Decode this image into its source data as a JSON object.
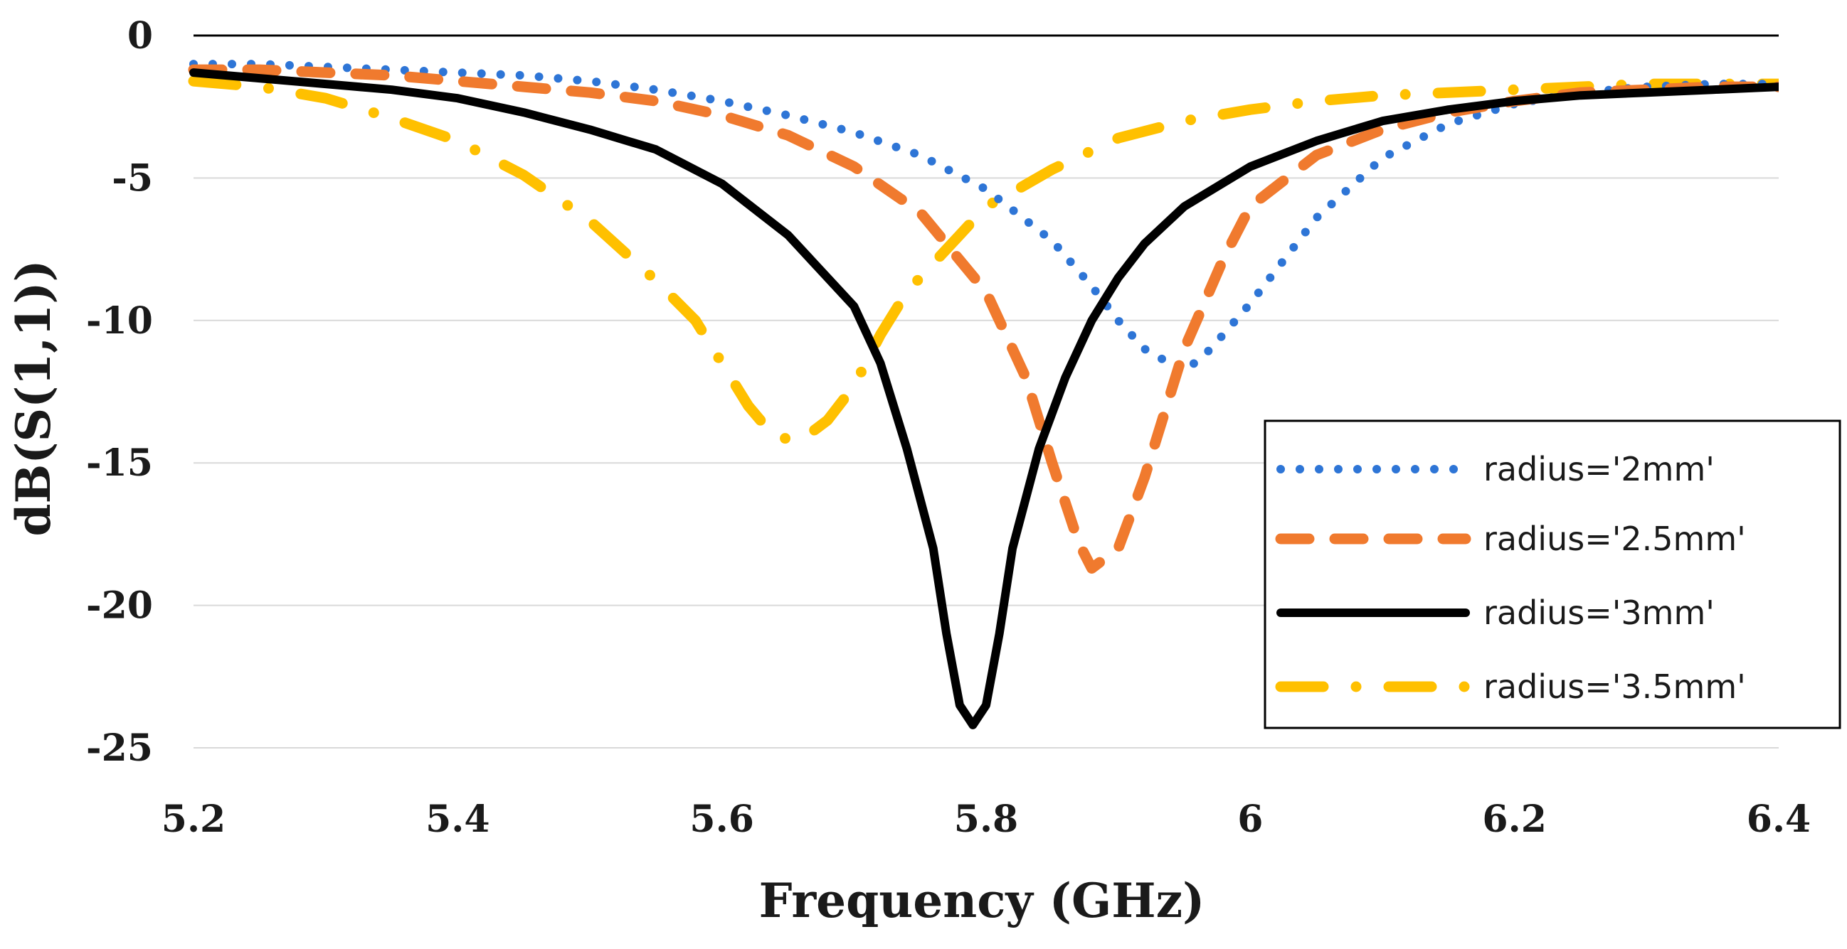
{
  "chart_data": {
    "type": "line",
    "title": "",
    "xlabel": "Frequency (GHz)",
    "ylabel": "dB(S(1,1))",
    "xlim": [
      5.2,
      6.4
    ],
    "ylim": [
      -25,
      0
    ],
    "xticks": [
      5.2,
      5.4,
      5.6,
      5.8,
      6,
      6.2,
      6.4
    ],
    "xtick_labels": [
      "5.2",
      "5.4",
      "5.6",
      "5.8",
      "6",
      "6.2",
      "6.4"
    ],
    "yticks": [
      0,
      -5,
      -10,
      -15,
      -20,
      -25
    ],
    "ytick_labels": [
      "0",
      "-5",
      "-10",
      "-15",
      "-20",
      "-25"
    ],
    "grid": "horizontal",
    "legend_position": "right",
    "series": [
      {
        "name": "radius='2mm'",
        "color": "#2E75D6",
        "style": "dotted",
        "x": [
          5.2,
          5.25,
          5.3,
          5.35,
          5.4,
          5.45,
          5.5,
          5.55,
          5.6,
          5.65,
          5.7,
          5.75,
          5.8,
          5.85,
          5.88,
          5.9,
          5.92,
          5.95,
          5.97,
          6.0,
          6.05,
          6.1,
          6.15,
          6.2,
          6.25,
          6.3,
          6.35,
          6.4
        ],
        "y": [
          -1.0,
          -1.0,
          -1.1,
          -1.2,
          -1.3,
          -1.4,
          -1.6,
          -1.9,
          -2.3,
          -2.8,
          -3.4,
          -4.2,
          -5.4,
          -7.2,
          -8.8,
          -10.0,
          -11.0,
          -11.8,
          -11.0,
          -9.4,
          -6.4,
          -4.3,
          -3.1,
          -2.4,
          -2.0,
          -1.8,
          -1.7,
          -1.7
        ]
      },
      {
        "name": "radius='2.5mm'",
        "color": "#F07A2E",
        "style": "dashed",
        "x": [
          5.2,
          5.25,
          5.3,
          5.35,
          5.4,
          5.45,
          5.5,
          5.55,
          5.6,
          5.65,
          5.7,
          5.75,
          5.8,
          5.83,
          5.85,
          5.87,
          5.88,
          5.9,
          5.92,
          5.95,
          5.98,
          6.0,
          6.05,
          6.1,
          6.15,
          6.2,
          6.25,
          6.3,
          6.35,
          6.4
        ],
        "y": [
          -1.2,
          -1.2,
          -1.3,
          -1.4,
          -1.6,
          -1.8,
          -2.0,
          -2.3,
          -2.8,
          -3.5,
          -4.6,
          -6.2,
          -9.0,
          -12.0,
          -15.0,
          -17.8,
          -18.7,
          -18.0,
          -15.5,
          -11.0,
          -7.8,
          -6.0,
          -4.2,
          -3.3,
          -2.7,
          -2.3,
          -2.0,
          -1.9,
          -1.8,
          -1.8
        ]
      },
      {
        "name": "radius='3mm'",
        "color": "#000000",
        "style": "solid",
        "x": [
          5.2,
          5.25,
          5.3,
          5.35,
          5.4,
          5.45,
          5.5,
          5.55,
          5.6,
          5.65,
          5.7,
          5.72,
          5.74,
          5.76,
          5.77,
          5.78,
          5.79,
          5.8,
          5.81,
          5.82,
          5.84,
          5.86,
          5.88,
          5.9,
          5.92,
          5.95,
          6.0,
          6.05,
          6.1,
          6.15,
          6.2,
          6.25,
          6.3,
          6.35,
          6.4
        ],
        "y": [
          -1.3,
          -1.5,
          -1.7,
          -1.9,
          -2.2,
          -2.7,
          -3.3,
          -4.0,
          -5.2,
          -7.0,
          -9.5,
          -11.5,
          -14.5,
          -18.0,
          -21.0,
          -23.5,
          -24.2,
          -23.5,
          -21.0,
          -18.0,
          -14.5,
          -12.0,
          -10.0,
          -8.5,
          -7.3,
          -6.0,
          -4.6,
          -3.7,
          -3.0,
          -2.6,
          -2.3,
          -2.1,
          -2.0,
          -1.9,
          -1.8
        ]
      },
      {
        "name": "radius='3.5mm'",
        "color": "#FFC000",
        "style": "dash-dot",
        "x": [
          5.2,
          5.25,
          5.3,
          5.35,
          5.4,
          5.45,
          5.5,
          5.55,
          5.58,
          5.6,
          5.62,
          5.64,
          5.66,
          5.68,
          5.7,
          5.72,
          5.74,
          5.76,
          5.78,
          5.8,
          5.82,
          5.85,
          5.9,
          5.95,
          6.0,
          6.05,
          6.1,
          6.15,
          6.2,
          6.25,
          6.3,
          6.35,
          6.4
        ],
        "y": [
          -1.6,
          -1.8,
          -2.2,
          -2.9,
          -3.7,
          -4.9,
          -6.5,
          -8.6,
          -10.0,
          -11.5,
          -13.0,
          -14.1,
          -14.2,
          -13.5,
          -12.3,
          -10.5,
          -9.0,
          -8.0,
          -7.0,
          -6.0,
          -5.5,
          -4.7,
          -3.6,
          -3.0,
          -2.6,
          -2.3,
          -2.1,
          -2.0,
          -1.9,
          -1.8,
          -1.7,
          -1.7,
          -1.7
        ]
      }
    ]
  }
}
